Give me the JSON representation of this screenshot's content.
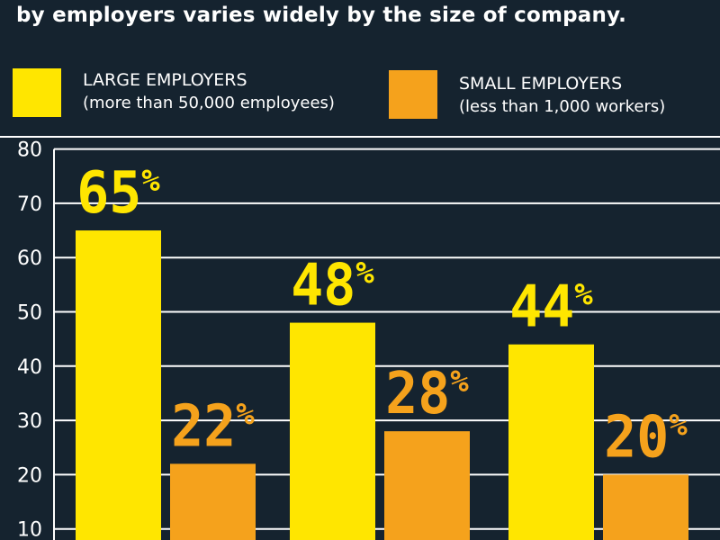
{
  "header": {
    "subtitle": "by employers varies widely by the size of company."
  },
  "legend": [
    {
      "label": "LARGE EMPLOYERS",
      "sublabel": "(more than 50,000 employees)",
      "color": "#ffe600"
    },
    {
      "label": "SMALL EMPLOYERS",
      "sublabel": "(less than 1,000 workers)",
      "color": "#f5a21c"
    }
  ],
  "colors": {
    "background": "#15232f",
    "gridline": "#ffffff",
    "text": "#ffffff"
  },
  "chart_data": {
    "type": "bar",
    "categories": [
      "",
      "",
      ""
    ],
    "series": [
      {
        "name": "LARGE EMPLOYERS",
        "values": [
          65,
          48,
          44
        ],
        "color": "#ffe600"
      },
      {
        "name": "SMALL EMPLOYERS",
        "values": [
          22,
          28,
          20
        ],
        "color": "#f5a21c"
      }
    ],
    "data_labels": [
      [
        "65%",
        "48%",
        "44%"
      ],
      [
        "22%",
        "28%",
        "20%"
      ]
    ],
    "yticks": [
      "10",
      "20",
      "30",
      "40",
      "50",
      "60",
      "70",
      "80"
    ],
    "ylim": [
      0,
      80
    ],
    "grid": true,
    "legend_position": "top"
  }
}
